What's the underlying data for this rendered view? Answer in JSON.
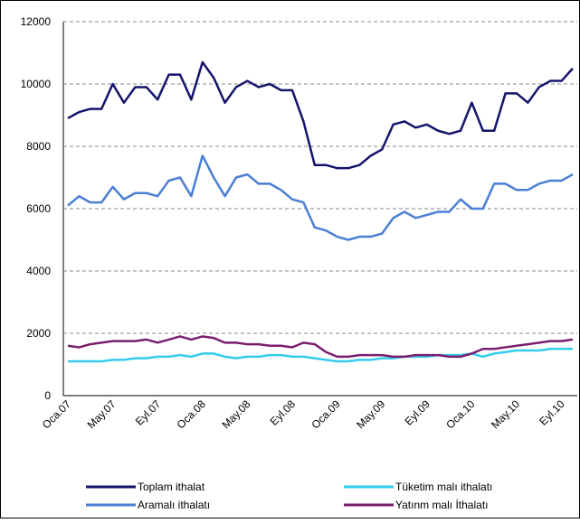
{
  "chart_data": {
    "type": "line",
    "categories": [
      "Oca.07",
      null,
      null,
      null,
      "May.07",
      null,
      null,
      null,
      "Eyl.07",
      null,
      null,
      null,
      "Oca.08",
      null,
      null,
      null,
      "May.08",
      null,
      null,
      null,
      "Eyl.08",
      null,
      null,
      null,
      "Oca.09",
      null,
      null,
      null,
      "May.09",
      null,
      null,
      null,
      "Eyl.09",
      null,
      null,
      null,
      "Oca.10",
      null,
      null,
      null,
      "May.10",
      null,
      null,
      null,
      "Eyl.10",
      null
    ],
    "series": [
      {
        "name": "Toplam ithalat",
        "color": "#14146b",
        "values": [
          8900,
          9100,
          9200,
          9200,
          10000,
          9400,
          9900,
          9900,
          9500,
          10300,
          10300,
          9500,
          10700,
          10200,
          9400,
          9900,
          10100,
          9900,
          10000,
          9800,
          9800,
          8800,
          7400,
          7400,
          7300,
          7300,
          7400,
          7700,
          7900,
          8700,
          8800,
          8600,
          8700,
          8500,
          8400,
          8500,
          9400,
          8500,
          8500,
          9700,
          9700,
          9400,
          9900,
          10100,
          10100,
          10500
        ]
      },
      {
        "name": "Tüketim malı ithalatı",
        "color": "#33ccee",
        "values": [
          1100,
          1100,
          1100,
          1100,
          1150,
          1150,
          1200,
          1200,
          1250,
          1250,
          1300,
          1250,
          1350,
          1350,
          1250,
          1200,
          1250,
          1250,
          1300,
          1300,
          1250,
          1250,
          1200,
          1150,
          1100,
          1100,
          1150,
          1150,
          1200,
          1200,
          1250,
          1250,
          1250,
          1300,
          1300,
          1300,
          1350,
          1250,
          1350,
          1400,
          1450,
          1450,
          1450,
          1500,
          1500,
          1500
        ]
      },
      {
        "name": "Aramalı ithalatı",
        "color": "#4a7fd4",
        "values": [
          6100,
          6400,
          6200,
          6200,
          6700,
          6300,
          6500,
          6500,
          6400,
          6900,
          7000,
          6400,
          7700,
          7000,
          6400,
          7000,
          7100,
          6800,
          6800,
          6600,
          6300,
          6200,
          5400,
          5300,
          5100,
          5000,
          5100,
          5100,
          5200,
          5700,
          5900,
          5700,
          5800,
          5900,
          5900,
          6300,
          6000,
          6000,
          6800,
          6800,
          6600,
          6600,
          6800,
          6900,
          6900,
          7100
        ]
      },
      {
        "name": "Yatınm malı İthalatı",
        "color": "#7a1f6e",
        "values": [
          1600,
          1550,
          1650,
          1700,
          1750,
          1750,
          1750,
          1800,
          1700,
          1800,
          1900,
          1800,
          1900,
          1850,
          1700,
          1700,
          1650,
          1650,
          1600,
          1600,
          1550,
          1700,
          1650,
          1400,
          1250,
          1250,
          1300,
          1300,
          1300,
          1250,
          1250,
          1300,
          1300,
          1300,
          1250,
          1250,
          1350,
          1500,
          1500,
          1550,
          1600,
          1650,
          1700,
          1750,
          1750,
          1800
        ]
      }
    ],
    "ylim": [
      0,
      12000
    ],
    "yticks": [
      0,
      2000,
      4000,
      6000,
      8000,
      10000,
      12000
    ],
    "grid": true
  }
}
